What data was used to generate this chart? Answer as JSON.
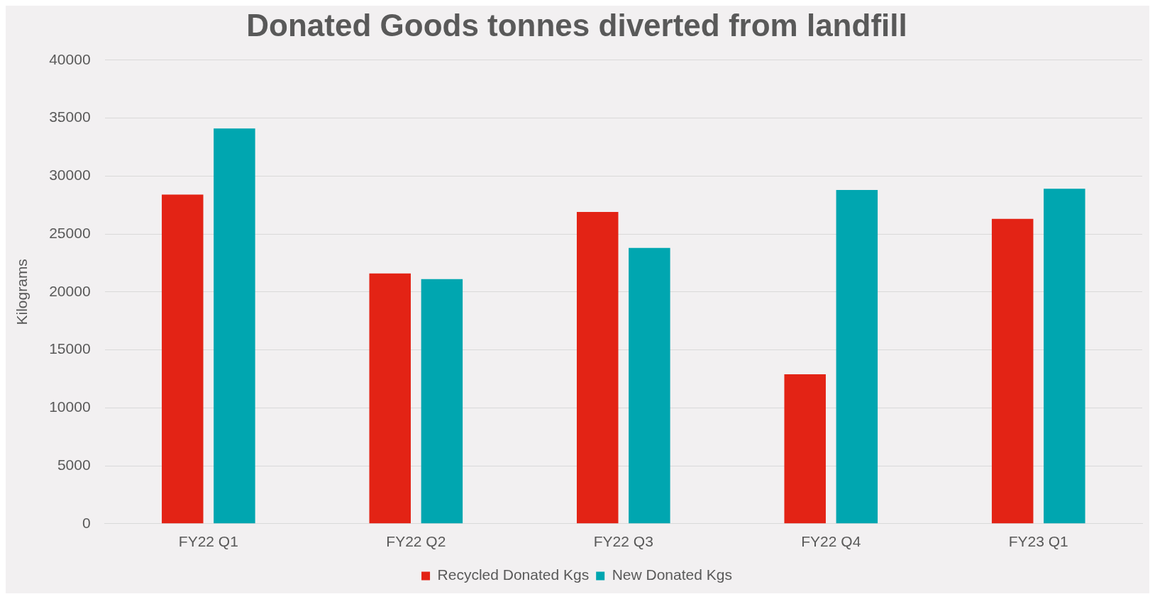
{
  "chart_data": {
    "type": "bar",
    "title": "Donated Goods tonnes diverted from landfill",
    "ylabel": "Kilograms",
    "categories": [
      "FY22 Q1",
      "FY22 Q2",
      "FY22 Q3",
      "FY22 Q4",
      "FY23 Q1"
    ],
    "series": [
      {
        "name": "Recycled Donated Kgs",
        "color": "#e32315",
        "values": [
          28400,
          21600,
          26900,
          12900,
          26300
        ]
      },
      {
        "name": "New Donated Kgs",
        "color": "#00a6b0",
        "values": [
          34100,
          21100,
          23800,
          28800,
          28900
        ]
      }
    ],
    "ylim": [
      0,
      40000
    ],
    "yticks": [
      0,
      5000,
      10000,
      15000,
      20000,
      25000,
      30000,
      35000,
      40000
    ],
    "grid": "y",
    "legend": "bottom"
  }
}
